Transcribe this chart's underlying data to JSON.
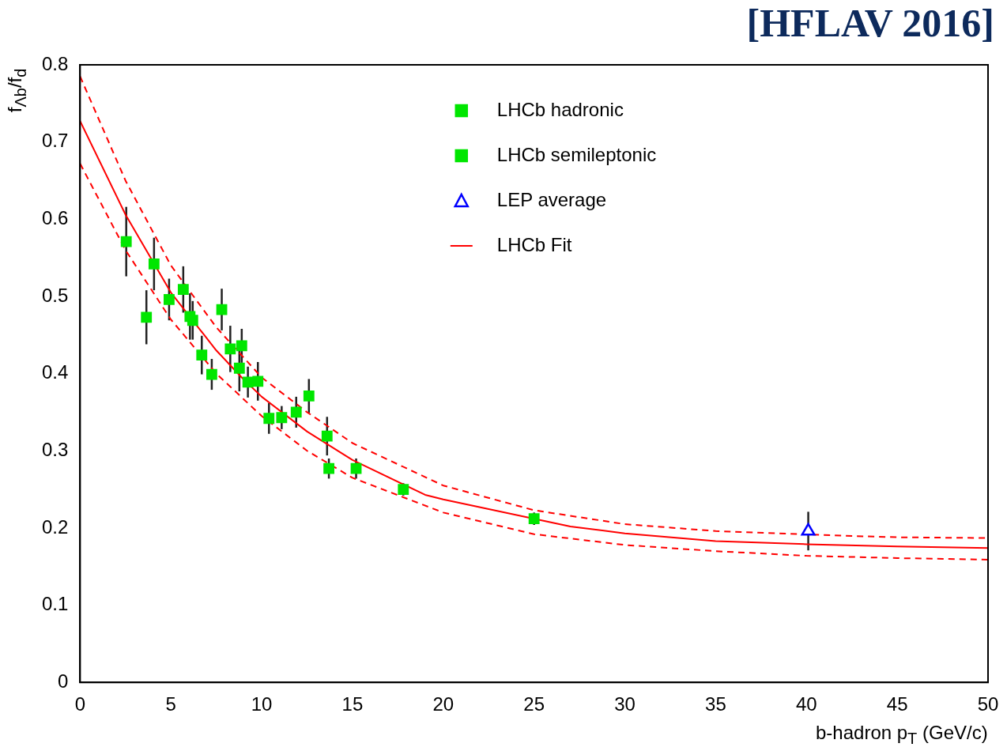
{
  "chart_data": {
    "type": "scatter",
    "annotations": [
      "[HFLAV 2016]"
    ],
    "xlabel": "b-hadron p$_{T}$ (GeV/c)",
    "ylabel": "f$_{Λb}$/f$_{d}$",
    "xlim": [
      0,
      50
    ],
    "ylim": [
      0,
      0.8
    ],
    "xticks": [
      0,
      5,
      10,
      15,
      20,
      25,
      30,
      35,
      40,
      45,
      50
    ],
    "yticks": [
      0,
      0.1,
      0.2,
      0.3,
      0.4,
      0.5,
      0.6,
      0.7,
      0.8
    ],
    "grid": false,
    "legend": "top right",
    "series": [
      {
        "name": "LHCb hadronic",
        "marker": "square",
        "color": "#00e600",
        "x": [
          2.54,
          4.07,
          4.9,
          5.68,
          6.2,
          6.7,
          7.25,
          7.8,
          8.27,
          8.77,
          9.24,
          9.79,
          10.4,
          11.1,
          11.9,
          12.6,
          13.7,
          15.2,
          17.8,
          25.0
        ],
        "values": [
          0.571,
          0.542,
          0.496,
          0.509,
          0.469,
          0.424,
          0.399,
          0.483,
          0.432,
          0.407,
          0.389,
          0.39,
          0.342,
          0.343,
          0.35,
          0.371,
          0.277,
          0.277,
          0.25,
          0.212
        ],
        "errors": [
          0.045,
          0.034,
          0.027,
          0.03,
          0.025,
          0.025,
          0.02,
          0.027,
          0.03,
          0.03,
          0.02,
          0.025,
          0.02,
          0.015,
          0.02,
          0.022,
          0.013,
          0.013,
          0.008,
          0.008
        ]
      },
      {
        "name": "LHCb semileptonic",
        "marker": "square",
        "color": "#00e600",
        "x": [
          3.65,
          6.05,
          8.9,
          13.6
        ],
        "values": [
          0.473,
          0.474,
          0.436,
          0.319
        ],
        "errors": [
          0.035,
          0.03,
          0.022,
          0.025
        ]
      },
      {
        "name": "LEP average",
        "marker": "triangle",
        "color": "#0000ff",
        "x": [
          40.1
        ],
        "values": [
          0.196
        ],
        "errors": [
          0.025
        ]
      },
      {
        "name": "LHCb Fit",
        "type": "line",
        "marker": "none",
        "line_style": "solid",
        "color": "#ff0000",
        "x": [
          0,
          2.5,
          5,
          7.5,
          8.9,
          10,
          12.5,
          15,
          19,
          20,
          27,
          30,
          35,
          40,
          45,
          50
        ],
        "values": [
          0.727,
          0.606,
          0.505,
          0.43,
          0.395,
          0.37,
          0.325,
          0.288,
          0.243,
          0.237,
          0.202,
          0.193,
          0.183,
          0.179,
          0.176,
          0.174
        ]
      },
      {
        "type": "line",
        "marker": "none",
        "line_style": "dashed",
        "color": "#ff0000",
        "x": [
          0,
          2.5,
          5,
          7.5,
          10,
          12.5,
          15,
          20,
          25,
          30,
          35,
          42,
          45,
          50
        ],
        "values": [
          0.785,
          0.65,
          0.54,
          0.46,
          0.395,
          0.35,
          0.31,
          0.255,
          0.223,
          0.205,
          0.196,
          0.19,
          0.188,
          0.187
        ]
      },
      {
        "type": "line",
        "marker": "none",
        "line_style": "dashed",
        "color": "#ff0000",
        "x": [
          0,
          2.5,
          5,
          7.5,
          10,
          12.5,
          15,
          20,
          25,
          30,
          35,
          40,
          45,
          50
        ],
        "values": [
          0.672,
          0.56,
          0.47,
          0.4,
          0.345,
          0.3,
          0.265,
          0.22,
          0.192,
          0.178,
          0.17,
          0.164,
          0.161,
          0.159
        ]
      }
    ]
  }
}
